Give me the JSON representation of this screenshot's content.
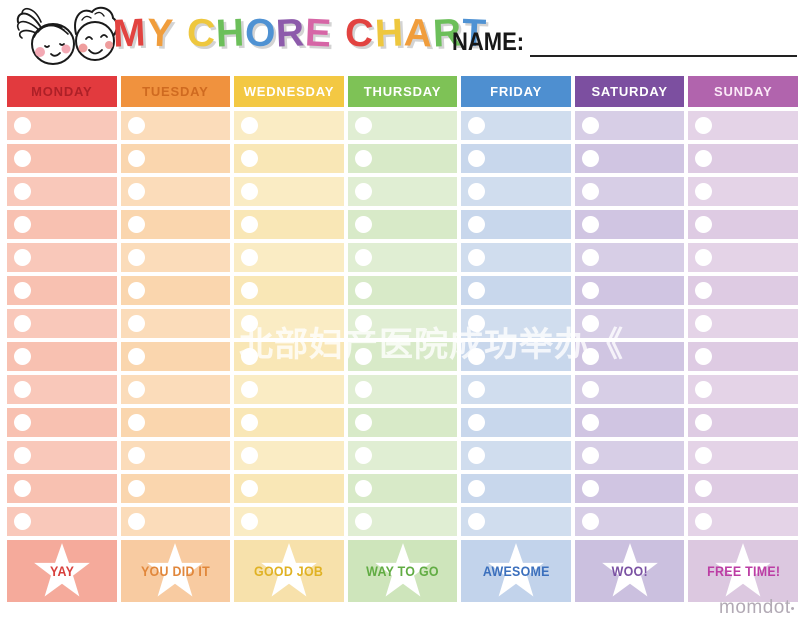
{
  "title": {
    "text": "MY CHORE CHART",
    "letters": [
      {
        "ch": "M",
        "color": "#e24340"
      },
      {
        "ch": "Y",
        "color": "#f09d3c"
      },
      {
        "ch": " "
      },
      {
        "ch": "C",
        "color": "#eec73e"
      },
      {
        "ch": "H",
        "color": "#6cbf5a"
      },
      {
        "ch": "O",
        "color": "#4f92d3"
      },
      {
        "ch": "R",
        "color": "#8d5bab"
      },
      {
        "ch": "E",
        "color": "#d666a6"
      },
      {
        "ch": " "
      },
      {
        "ch": "C",
        "color": "#e24340"
      },
      {
        "ch": "H",
        "color": "#eec73e"
      },
      {
        "ch": "A",
        "color": "#f09d3c"
      },
      {
        "ch": "R",
        "color": "#6cbf5a"
      },
      {
        "ch": "T",
        "color": "#4f92d3"
      }
    ]
  },
  "name": {
    "label": "NAME:"
  },
  "watermark": {
    "text": "北部妇产医院成功举办《"
  },
  "brand": {
    "text": "momdot",
    "mark": "•"
  },
  "chart": {
    "rows_per_day": 13,
    "days": [
      {
        "label": "MONDAY",
        "header_bg": "#e23a3e",
        "header_fg": "#ad2027",
        "cell_bg": "#f9c8ba",
        "cell_bg_alt": "#f8c1b1",
        "reward_bg": "#f5aa9b",
        "reward": {
          "label": "YAY",
          "color": "#d8403c"
        }
      },
      {
        "label": "TUESDAY",
        "header_bg": "#f0923e",
        "header_fg": "#cf6a20",
        "cell_bg": "#fbdcba",
        "cell_bg_alt": "#fad6ae",
        "reward_bg": "#f8cba1",
        "reward": {
          "label": "YOU DID IT",
          "color": "#e1873b"
        }
      },
      {
        "label": "WEDNESDAY",
        "header_bg": "#f3c843",
        "header_fg": "#ffffff",
        "cell_bg": "#faecc4",
        "cell_bg_alt": "#f9e7b6",
        "reward_bg": "#f7e1ab",
        "reward": {
          "label": "GOOD JOB",
          "color": "#e0b224"
        }
      },
      {
        "label": "THURSDAY",
        "header_bg": "#7ec256",
        "header_fg": "#ffffff",
        "cell_bg": "#e0eed3",
        "cell_bg_alt": "#d8eac8",
        "reward_bg": "#cee5bb",
        "reward": {
          "label": "WAY TO GO",
          "color": "#61ac43"
        }
      },
      {
        "label": "FRIDAY",
        "header_bg": "#4e8fd0",
        "header_fg": "#ffffff",
        "cell_bg": "#d0ddee",
        "cell_bg_alt": "#c8d7ec",
        "reward_bg": "#c2d3eb",
        "reward": {
          "label": "AWESOME",
          "color": "#3c70bd"
        }
      },
      {
        "label": "SATURDAY",
        "header_bg": "#7c4fa0",
        "header_fg": "#ffffff",
        "cell_bg": "#d7cee6",
        "cell_bg_alt": "#d0c5e2",
        "reward_bg": "#cbc0df",
        "reward": {
          "label": "WOO!",
          "color": "#7b52a3"
        }
      },
      {
        "label": "SUNDAY",
        "header_bg": "#b164ad",
        "header_fg": "#fbe9f7",
        "cell_bg": "#e4d3e7",
        "cell_bg_alt": "#decbe3",
        "reward_bg": "#dcc8e0",
        "reward": {
          "label": "FREE TIME!",
          "color": "#bc3da4"
        }
      }
    ]
  }
}
